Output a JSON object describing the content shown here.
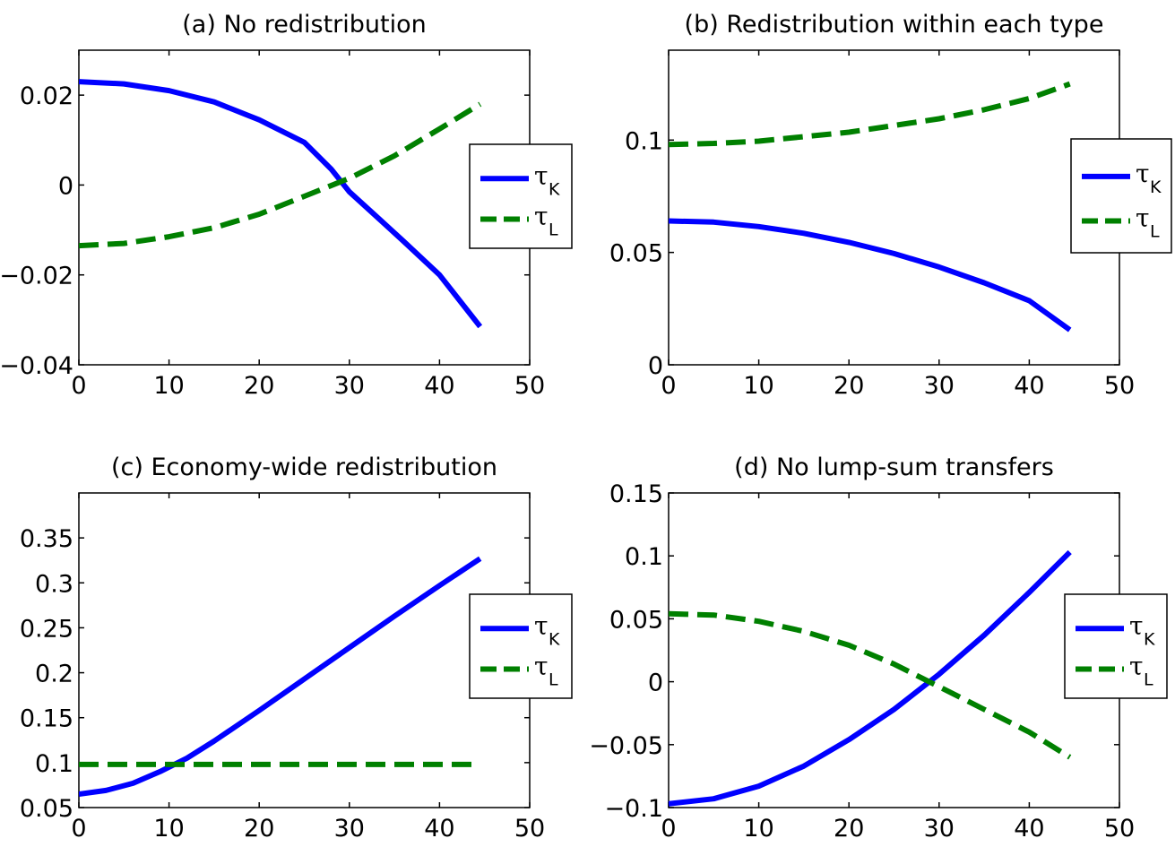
{
  "chart_data": [
    {
      "type": "line",
      "title": "(a) No redistribution",
      "xlim": [
        0,
        50
      ],
      "ylim": [
        -0.04,
        0.03
      ],
      "xticks": [
        "0",
        "10",
        "20",
        "30",
        "40",
        "50"
      ],
      "yticks": [
        "−0.04",
        "−0.02",
        "0",
        "0.02"
      ],
      "ytick_values": [
        -0.04,
        -0.02,
        0,
        0.02
      ],
      "legend": {
        "placement": "right",
        "entries": [
          {
            "base": "τ",
            "sub": "K"
          },
          {
            "base": "τ",
            "sub": "L"
          }
        ]
      },
      "series": [
        {
          "name": "τK",
          "color": "#0000ff",
          "style": "solid",
          "x": [
            0,
            5,
            10,
            15,
            20,
            25,
            28,
            30,
            33,
            36,
            40,
            44.5
          ],
          "y": [
            0.023,
            0.0225,
            0.021,
            0.0185,
            0.0145,
            0.0095,
            0.0035,
            -0.0015,
            -0.007,
            -0.0125,
            -0.02,
            -0.0315
          ]
        },
        {
          "name": "τL",
          "color": "#008000",
          "style": "dashed",
          "x": [
            0,
            5,
            10,
            15,
            20,
            25,
            30,
            35,
            40,
            44.5
          ],
          "y": [
            -0.0135,
            -0.013,
            -0.0115,
            -0.0095,
            -0.0065,
            -0.0025,
            0.0015,
            0.0065,
            0.0125,
            0.018
          ]
        }
      ]
    },
    {
      "type": "line",
      "title": "(b) Redistribution within each type",
      "xlim": [
        0,
        50
      ],
      "ylim": [
        0,
        0.14
      ],
      "xticks": [
        "0",
        "10",
        "20",
        "30",
        "40",
        "50"
      ],
      "yticks": [
        "0",
        "0.05",
        "0.1"
      ],
      "ytick_values": [
        0,
        0.05,
        0.1
      ],
      "legend": {
        "placement": "right",
        "entries": [
          {
            "base": "τ",
            "sub": "K"
          },
          {
            "base": "τ",
            "sub": "L"
          }
        ]
      },
      "series": [
        {
          "name": "τK",
          "color": "#0000ff",
          "style": "solid",
          "x": [
            0,
            5,
            10,
            15,
            20,
            25,
            30,
            35,
            40,
            44.5
          ],
          "y": [
            0.064,
            0.0635,
            0.0615,
            0.0585,
            0.0545,
            0.0495,
            0.0435,
            0.0365,
            0.0285,
            0.0155
          ]
        },
        {
          "name": "τL",
          "color": "#008000",
          "style": "dashed",
          "x": [
            0,
            5,
            10,
            15,
            20,
            25,
            30,
            35,
            40,
            44.5
          ],
          "y": [
            0.098,
            0.0985,
            0.0995,
            0.1015,
            0.1035,
            0.1065,
            0.1095,
            0.1135,
            0.1185,
            0.125
          ]
        }
      ]
    },
    {
      "type": "line",
      "title": "(c) Economy-wide redistribution",
      "xlim": [
        0,
        50
      ],
      "ylim": [
        0.05,
        0.4
      ],
      "xticks": [
        "0",
        "10",
        "20",
        "30",
        "40",
        "50"
      ],
      "yticks": [
        "0.05",
        "0.1",
        "0.15",
        "0.2",
        "0.25",
        "0.3",
        "0.35"
      ],
      "ytick_values": [
        0.05,
        0.1,
        0.15,
        0.2,
        0.25,
        0.3,
        0.35
      ],
      "legend": {
        "placement": "right",
        "entries": [
          {
            "base": "τ",
            "sub": "K"
          },
          {
            "base": "τ",
            "sub": "L"
          }
        ]
      },
      "series": [
        {
          "name": "τK",
          "color": "#0000ff",
          "style": "solid",
          "x": [
            0,
            3,
            6,
            9,
            12,
            15,
            20,
            25,
            30,
            35,
            40,
            44.5
          ],
          "y": [
            0.065,
            0.069,
            0.077,
            0.09,
            0.105,
            0.124,
            0.158,
            0.193,
            0.228,
            0.263,
            0.297,
            0.327
          ]
        },
        {
          "name": "τL",
          "color": "#008000",
          "style": "dashed",
          "x": [
            0,
            44.5
          ],
          "y": [
            0.098,
            0.098
          ]
        }
      ]
    },
    {
      "type": "line",
      "title": "(d) No lump-sum transfers",
      "xlim": [
        0,
        50
      ],
      "ylim": [
        -0.1,
        0.15
      ],
      "xticks": [
        "0",
        "10",
        "20",
        "30",
        "40",
        "50"
      ],
      "yticks": [
        "−0.1",
        "−0.05",
        "0",
        "0.05",
        "0.1",
        "0.15"
      ],
      "ytick_values": [
        -0.1,
        -0.05,
        0,
        0.05,
        0.1,
        0.15
      ],
      "legend": {
        "placement": "right",
        "entries": [
          {
            "base": "τ",
            "sub": "K"
          },
          {
            "base": "τ",
            "sub": "L"
          }
        ]
      },
      "series": [
        {
          "name": "τK",
          "color": "#0000ff",
          "style": "solid",
          "x": [
            0,
            5,
            10,
            15,
            20,
            25,
            30,
            35,
            40,
            44.5
          ],
          "y": [
            -0.097,
            -0.093,
            -0.083,
            -0.067,
            -0.046,
            -0.022,
            0.006,
            0.037,
            0.071,
            0.103
          ]
        },
        {
          "name": "τL",
          "color": "#008000",
          "style": "dashed",
          "x": [
            0,
            5,
            10,
            15,
            20,
            25,
            30,
            35,
            40,
            44.5
          ],
          "y": [
            0.054,
            0.053,
            0.048,
            0.04,
            0.029,
            0.014,
            -0.004,
            -0.022,
            -0.04,
            -0.06
          ]
        }
      ]
    }
  ]
}
